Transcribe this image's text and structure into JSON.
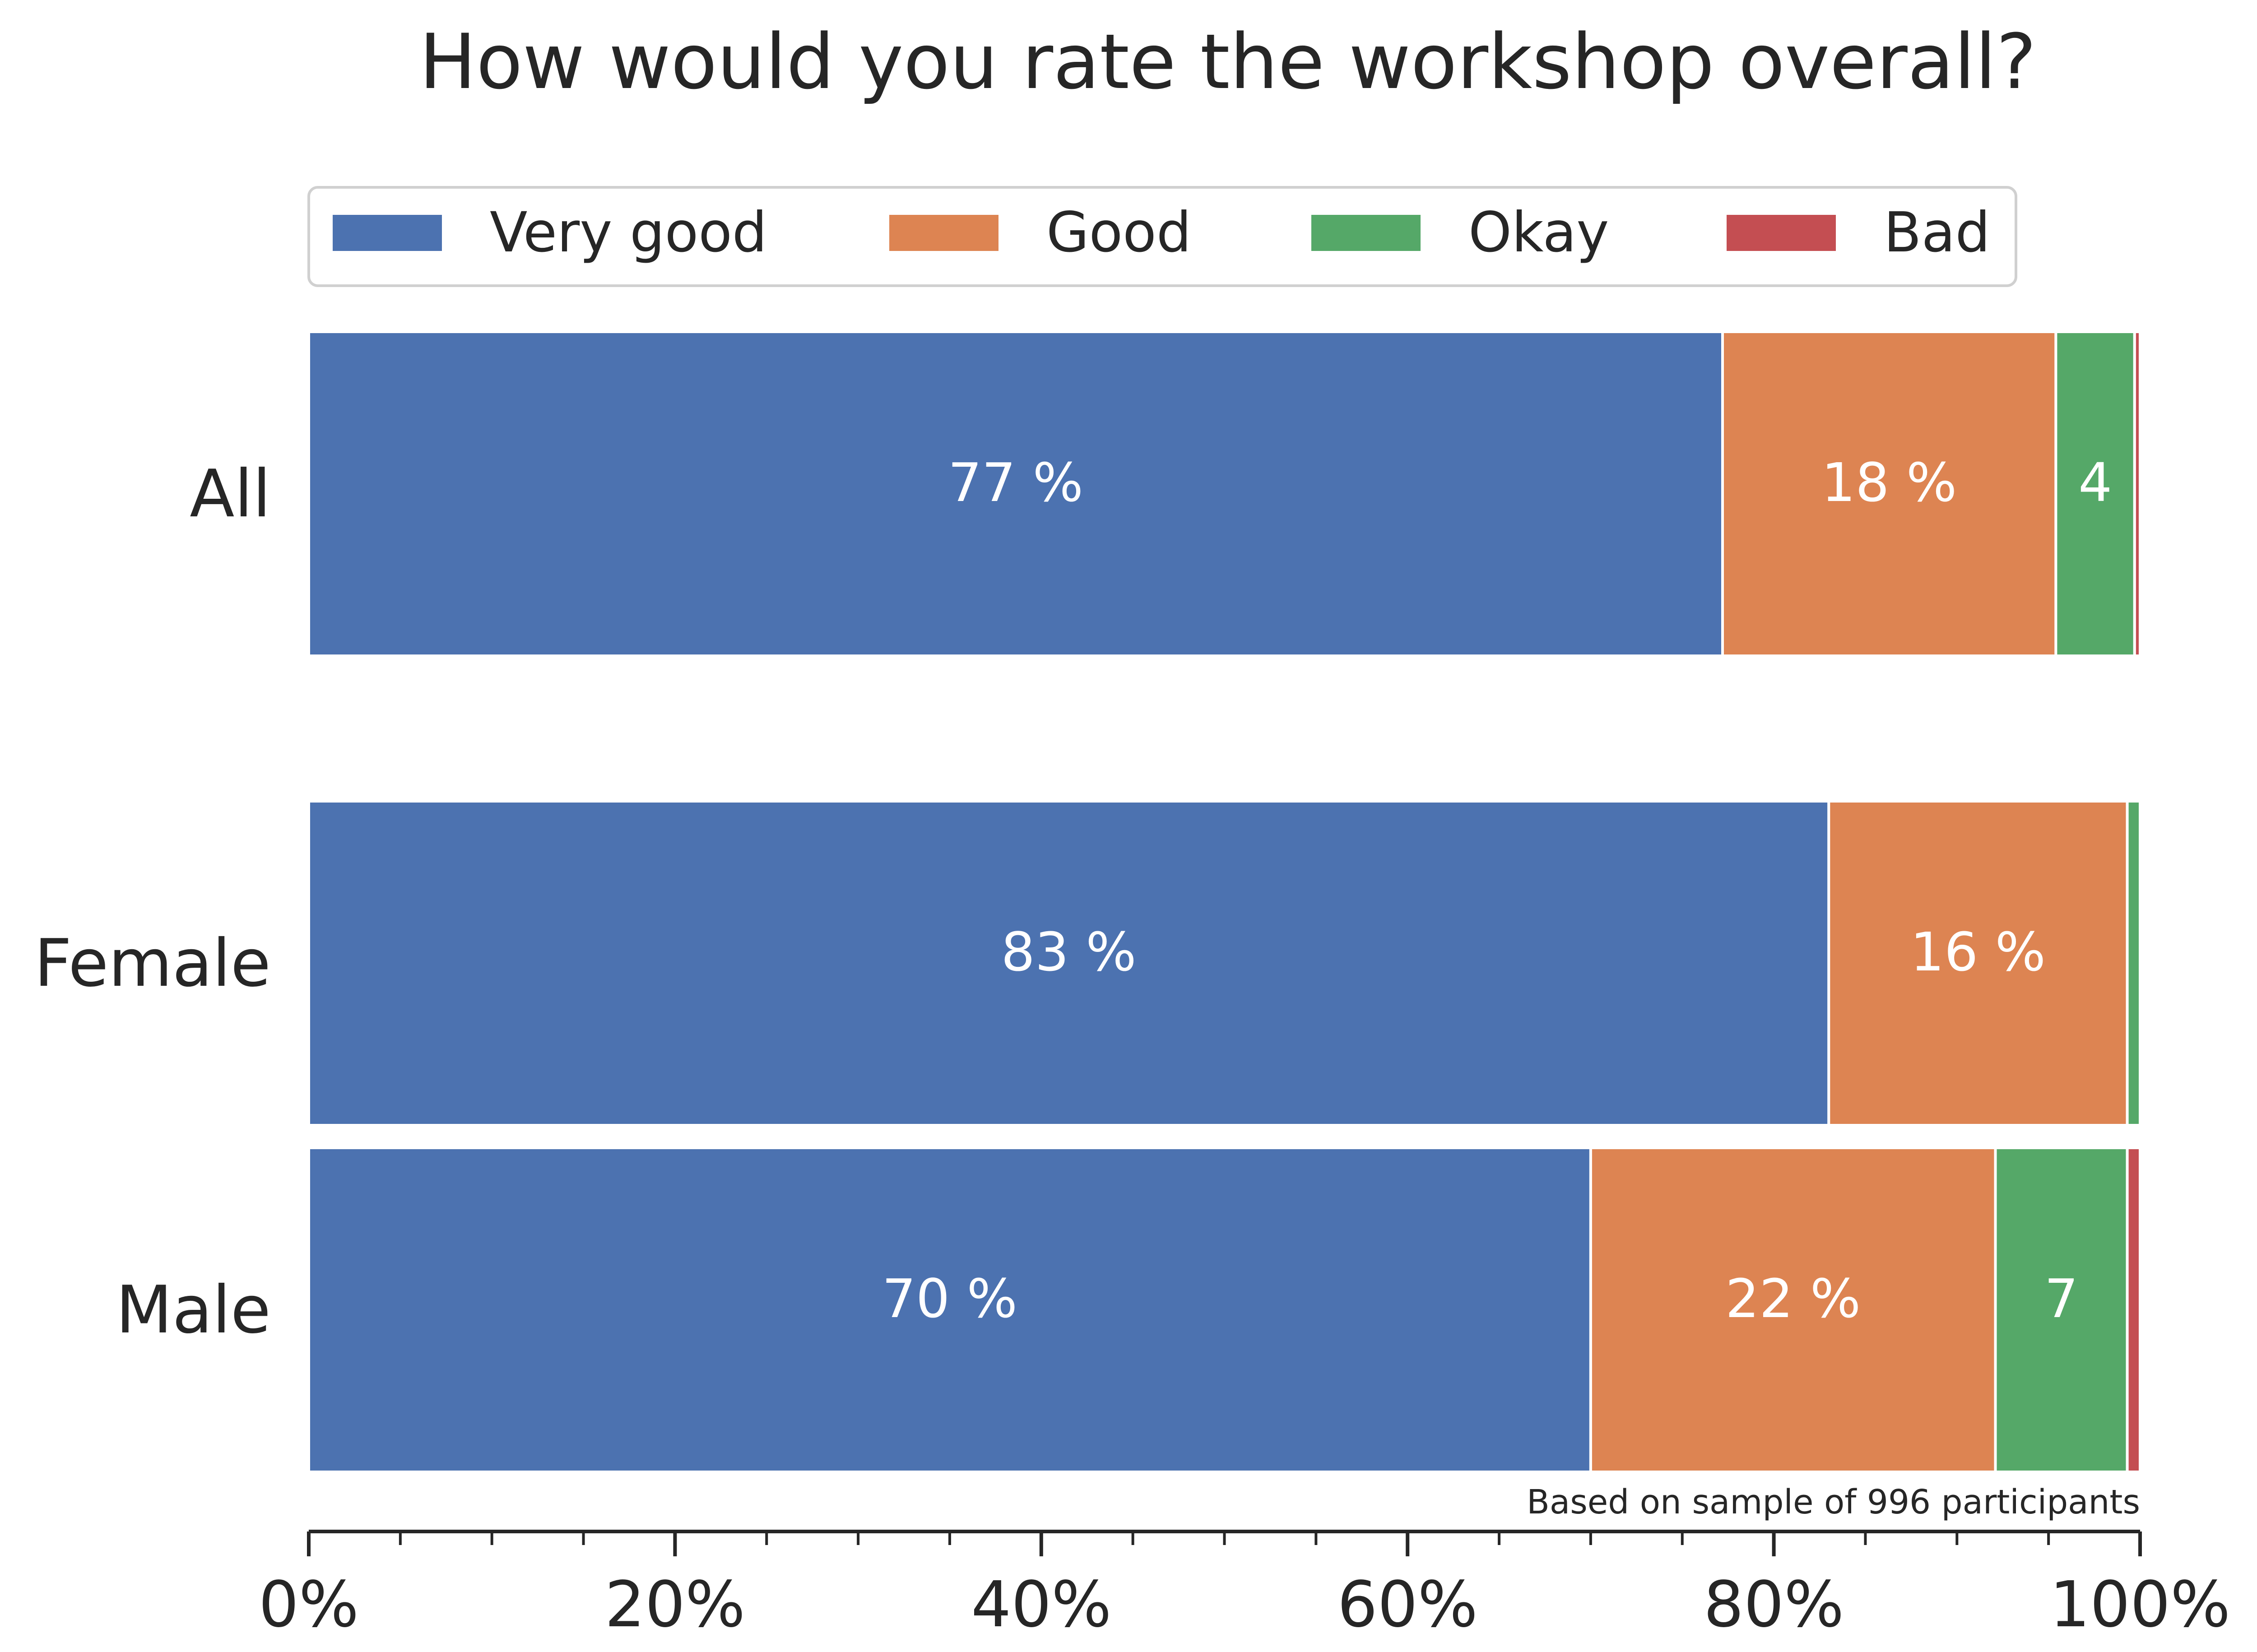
{
  "chart_data": {
    "type": "bar",
    "orientation": "horizontal",
    "stacked": true,
    "title": "How would you rate the workshop overall?",
    "categories": [
      "All",
      "Female",
      "Male"
    ],
    "series": [
      {
        "name": "Very good",
        "color": "#4c72b0",
        "values": [
          77.2,
          83.0,
          70.0
        ],
        "labels": [
          "77 %",
          "83 %",
          "70 %"
        ]
      },
      {
        "name": "Good",
        "color": "#dd8452",
        "values": [
          18.2,
          16.3,
          22.1
        ],
        "labels": [
          "18 %",
          "16 %",
          "22 %"
        ]
      },
      {
        "name": "Okay",
        "color": "#55a868",
        "values": [
          4.3,
          0.7,
          7.2
        ],
        "labels": [
          "4",
          "",
          "7"
        ]
      },
      {
        "name": "Bad",
        "color": "#c44e52",
        "values": [
          0.3,
          0.0,
          0.7
        ],
        "labels": [
          "",
          "",
          ""
        ]
      }
    ],
    "xlim": [
      0,
      100
    ],
    "xticks": [
      0,
      20,
      40,
      60,
      80,
      100
    ],
    "xticklabels": [
      "0%",
      "20%",
      "40%",
      "60%",
      "80%",
      "100%"
    ],
    "minor_xticks": [
      5,
      10,
      15,
      25,
      30,
      35,
      45,
      50,
      55,
      65,
      70,
      75,
      85,
      90,
      95
    ],
    "legend": "top",
    "grid": false,
    "note": "Based on sample of 996 participants"
  }
}
